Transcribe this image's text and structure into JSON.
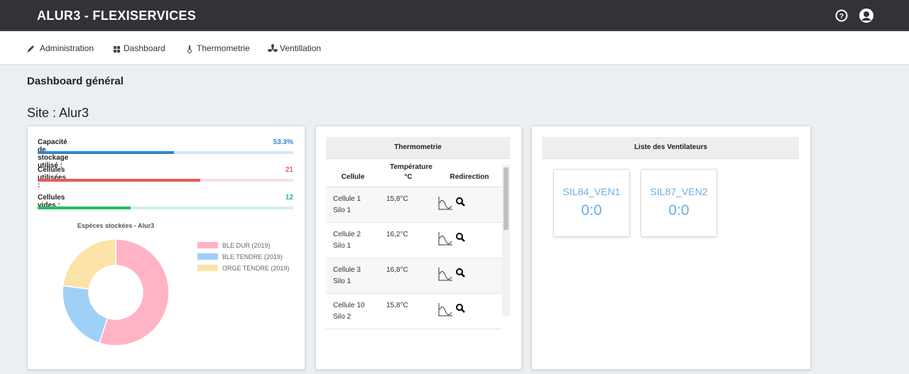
{
  "header": {
    "brand": "ALUR3 - FLEXISERVICES"
  },
  "nav": [
    "Administration",
    "Dashboard",
    "Thermometrie",
    "Ventillation"
  ],
  "page_title": "Dashboard général",
  "site": "Site : Alur3",
  "stats": [
    {
      "label": "Capacité de stockage utilisé :",
      "value": 53.3,
      "value_label": "53.3%",
      "color": "#2e86d1"
    },
    {
      "label": "Cellules utilisées :",
      "value": 21,
      "color": "#e85a5a"
    },
    {
      "label": "Cellules vides :",
      "value": 12,
      "color": "#1fbf63"
    }
  ],
  "chart_data": {
    "type": "pie",
    "title": "Espèces stockées - Alur3",
    "donut": true,
    "legend": "right",
    "categories": [
      "BLE DUR (2019)",
      "BLE TENDRE (2019)",
      "ORGE TENDRE (2019)"
    ],
    "values": [
      55,
      22,
      23
    ],
    "colors": [
      "#ffb3c4",
      "#9fd0f7",
      "#fde3a7"
    ]
  },
  "thermometrie": {
    "title": "Thermometrie",
    "columns": [
      "Cellule",
      "Température °C",
      "Redirection"
    ],
    "rows": [
      [
        "Cellule 1",
        "Silo 1",
        "15,8°C"
      ],
      [
        "Cellule 2",
        "Silo 1",
        "16,2°C"
      ],
      [
        "Cellule 3",
        "Silo 1",
        "16,8°C"
      ],
      [
        "Cellule 10",
        "Silo 2",
        "15,8°C"
      ]
    ]
  },
  "ventilateurs": {
    "title": "Liste des Ventilateurs",
    "items": [
      {
        "name": "SIL84_VEN1",
        "value": "0:0"
      },
      {
        "name": "SIL87_VEN2",
        "value": "0:0"
      }
    ]
  }
}
